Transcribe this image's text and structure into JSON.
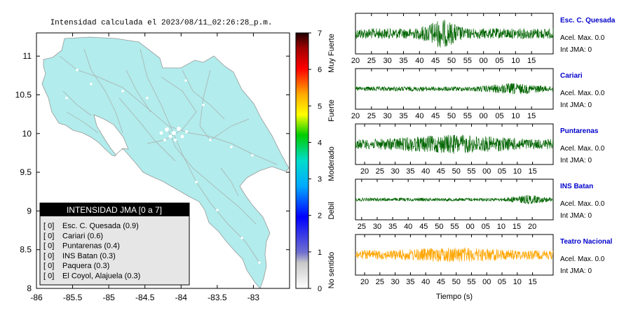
{
  "map": {
    "title": "Intensidad calculada el 2023/08/11_02:26:28_p.m.",
    "xlim": [
      -86,
      -82.5
    ],
    "ylim": [
      8,
      11.3
    ],
    "xticks": [
      "-86",
      "-85.5",
      "-85",
      "-84.5",
      "-84",
      "-83.5",
      "-83"
    ],
    "xtick_values": [
      -86,
      -85.5,
      -85,
      -84.5,
      -84,
      -83.5,
      -83
    ],
    "yticks": [
      "8",
      "8.5",
      "9",
      "9.5",
      "10",
      "10.5",
      "11"
    ],
    "ytick_values": [
      8,
      8.5,
      9,
      9.5,
      10,
      10.5,
      11
    ],
    "land_color": "#b2ecec"
  },
  "legend": {
    "title": "INTENSIDAD JMA [0 a 7]",
    "items": [
      {
        "badge": "[ 0]",
        "label": "Esc. C. Quesada (0.9)"
      },
      {
        "badge": "[ 0]",
        "label": "Cariari (0.6)"
      },
      {
        "badge": "[ 0]",
        "label": "Puntarenas (0.4)"
      },
      {
        "badge": "[ 0]",
        "label": "INS Batan (0.3)"
      },
      {
        "badge": "[ 0]",
        "label": "Paquera (0.3)"
      },
      {
        "badge": "[ 0]",
        "label": "El Coyol, Alajuela (0.3)"
      }
    ]
  },
  "colorbar": {
    "ticks": [
      "0",
      "1",
      "2",
      "3",
      "4",
      "5",
      "6",
      "7"
    ],
    "categories": [
      "No sentido",
      "Debil",
      "Moderado",
      "Fuerte",
      "Muy Fuerte"
    ]
  },
  "seismograms": {
    "xlabel": "Tiempo (s)",
    "stations": [
      {
        "name": "Esc. C. Quesada",
        "accel": "Acel. Max. 0.0",
        "int": "Int JMA: 0",
        "color": "#006400",
        "ticks": [
          "20",
          "25",
          "30",
          "35",
          "40",
          "45",
          "50",
          "55",
          "00",
          "05",
          "10",
          "15"
        ],
        "tick_start": 20,
        "amp": 0.8,
        "bursts": [
          [
            0.32,
            0.55,
            1.0
          ]
        ]
      },
      {
        "name": "Cariari",
        "accel": "Acel. Max. 0.0",
        "int": "Int JMA: 0",
        "color": "#006400",
        "ticks": [
          "20",
          "25",
          "30",
          "35",
          "40",
          "45",
          "50",
          "55",
          "00",
          "05",
          "10",
          "15"
        ],
        "tick_start": 20,
        "amp": 0.35,
        "bursts": [
          [
            0.6,
            1.0,
            0.9
          ]
        ]
      },
      {
        "name": "Puntarenas",
        "accel": "Acel. Max. 0.0",
        "int": "Int JMA: 0",
        "color": "#006400",
        "ticks": [
          "20",
          "25",
          "30",
          "35",
          "40",
          "45",
          "50",
          "55",
          "00",
          "05",
          "10",
          "15"
        ],
        "tick_start": 18,
        "amp": 0.75,
        "bursts": [
          [
            0.0,
            1.0,
            0.7
          ]
        ]
      },
      {
        "name": "INS Batan",
        "accel": "Acel. Max. 0.0",
        "int": "Int JMA: 0",
        "color": "#006400",
        "ticks": [
          "25",
          "30",
          "35",
          "40",
          "45",
          "50",
          "55",
          "00",
          "05",
          "10",
          "15",
          "20"
        ],
        "tick_start": 22,
        "amp": 0.25,
        "bursts": [
          [
            0.75,
            1.0,
            1.0
          ]
        ]
      },
      {
        "name": "Teatro Nacional",
        "accel": "Acel. Max. 0.0",
        "int": "Int JMA: 0",
        "color": "#ffa500",
        "ticks": [
          "20",
          "25",
          "30",
          "35",
          "40",
          "45",
          "50",
          "55",
          "00",
          "05",
          "10",
          "15"
        ],
        "tick_start": 18,
        "amp": 0.7,
        "bursts": [
          [
            0.0,
            1.0,
            0.6
          ]
        ]
      }
    ]
  }
}
